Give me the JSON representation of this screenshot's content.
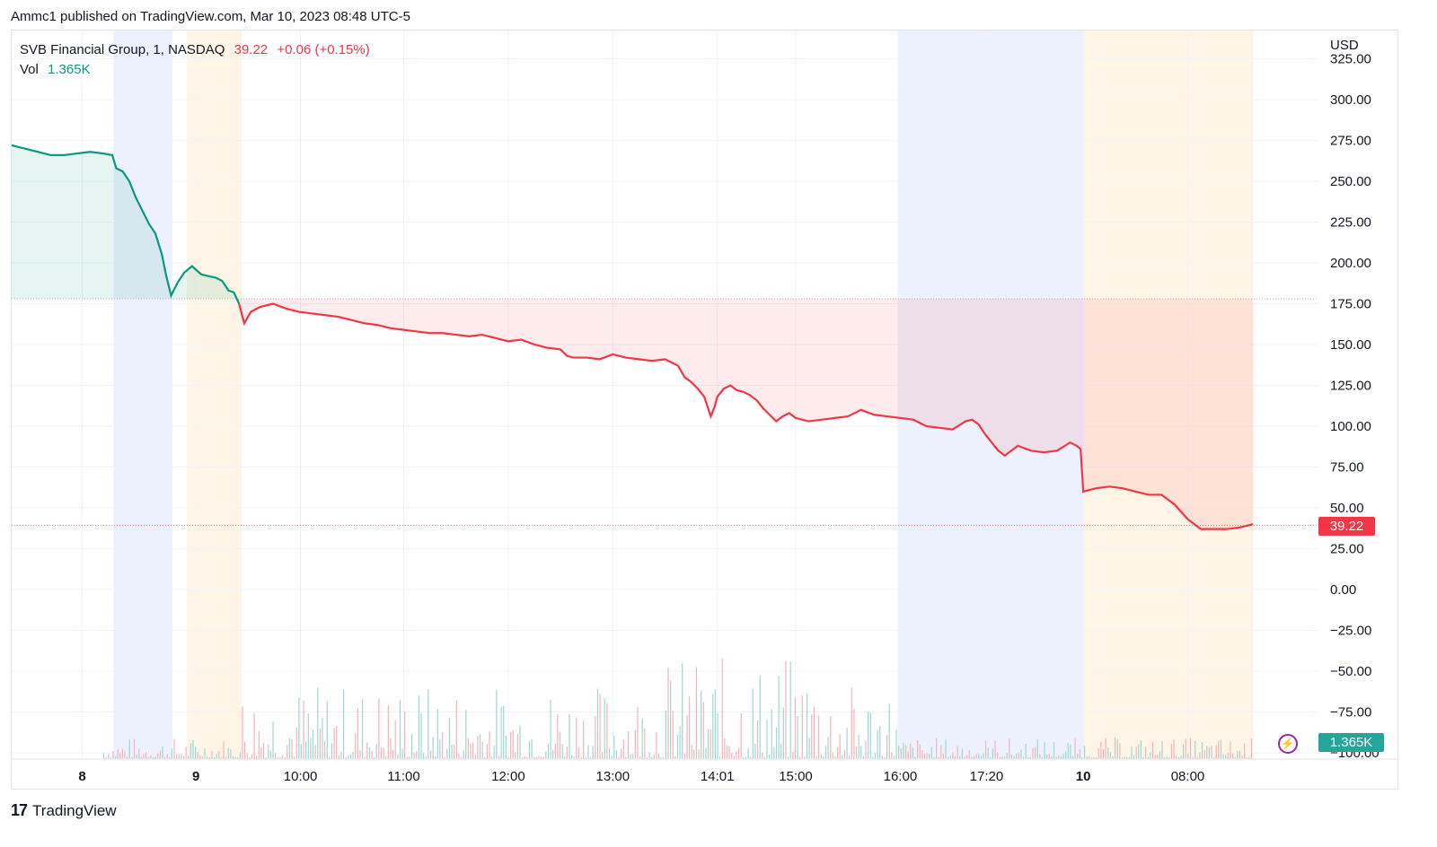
{
  "header": {
    "published": "Ammc1 published on TradingView.com, Mar 10, 2023 08:48 UTC-5"
  },
  "legend": {
    "symbol": "SVB Financial Group, 1, NASDAQ",
    "price": "39.22",
    "change": "+0.06 (+0.15%)",
    "vol_label": "Vol",
    "vol_value": "1.365K"
  },
  "price_tag": "39.22",
  "volume_tag": "1.365K",
  "footer": {
    "brand": "TradingView",
    "logo": "17"
  },
  "colors": {
    "up": "#089981",
    "down": "#f23645",
    "premarket": "#fff3e0",
    "afterhours": "#e8edfd",
    "grid": "#f0f3fa"
  },
  "chart_data": {
    "type": "line",
    "currency": "USD",
    "y_ticks": [
      "325.00",
      "300.00",
      "275.00",
      "250.00",
      "225.00",
      "200.00",
      "175.00",
      "150.00",
      "125.00",
      "100.00",
      "75.00",
      "50.00",
      "25.00",
      "0.00",
      "−25.00",
      "−50.00",
      "−75.00",
      "−100.00"
    ],
    "ylim": [
      -100,
      325
    ],
    "x_ticks": [
      {
        "label": "8",
        "bold": true,
        "t": 0.054
      },
      {
        "label": "9",
        "bold": true,
        "t": 0.141
      },
      {
        "label": "10:00",
        "bold": false,
        "t": 0.221
      },
      {
        "label": "11:00",
        "bold": false,
        "t": 0.3
      },
      {
        "label": "12:00",
        "bold": false,
        "t": 0.38
      },
      {
        "label": "13:00",
        "bold": false,
        "t": 0.46
      },
      {
        "label": "14:01",
        "bold": false,
        "t": 0.54
      },
      {
        "label": "15:00",
        "bold": false,
        "t": 0.6
      },
      {
        "label": "16:00",
        "bold": false,
        "t": 0.68
      },
      {
        "label": "17:20",
        "bold": false,
        "t": 0.746
      },
      {
        "label": "10",
        "bold": true,
        "t": 0.82
      },
      {
        "label": "08:00",
        "bold": false,
        "t": 0.9
      }
    ],
    "sessions": [
      {
        "type": "afterhours",
        "t0": 0.078,
        "t1": 0.123
      },
      {
        "type": "premarket",
        "t0": 0.134,
        "t1": 0.176
      },
      {
        "type": "afterhours",
        "t0": 0.678,
        "t1": 0.821
      },
      {
        "type": "premarket",
        "t0": 0.821,
        "t1": 0.95
      }
    ],
    "reference_price": 178,
    "last_price": 39.22,
    "series": [
      {
        "points": [
          [
            0.0,
            272
          ],
          [
            0.01,
            270
          ],
          [
            0.02,
            268
          ],
          [
            0.03,
            266
          ],
          [
            0.04,
            266
          ],
          [
            0.05,
            267
          ],
          [
            0.06,
            268
          ],
          [
            0.07,
            267
          ],
          [
            0.077,
            266
          ],
          [
            0.08,
            258
          ],
          [
            0.085,
            256
          ],
          [
            0.09,
            250
          ],
          [
            0.095,
            240
          ],
          [
            0.1,
            232
          ],
          [
            0.105,
            224
          ],
          [
            0.11,
            218
          ],
          [
            0.115,
            205
          ],
          [
            0.118,
            193
          ],
          [
            0.122,
            180
          ],
          [
            0.127,
            188
          ],
          [
            0.132,
            194
          ],
          [
            0.138,
            198
          ],
          [
            0.145,
            193
          ],
          [
            0.15,
            192
          ],
          [
            0.156,
            191
          ],
          [
            0.161,
            189
          ],
          [
            0.166,
            183
          ],
          [
            0.17,
            182
          ],
          [
            0.174,
            175
          ],
          [
            0.178,
            163
          ],
          [
            0.183,
            170
          ],
          [
            0.19,
            173
          ],
          [
            0.2,
            175
          ],
          [
            0.21,
            172
          ],
          [
            0.22,
            170
          ],
          [
            0.23,
            169
          ],
          [
            0.24,
            168
          ],
          [
            0.25,
            167
          ],
          [
            0.26,
            165
          ],
          [
            0.27,
            163
          ],
          [
            0.28,
            162
          ],
          [
            0.29,
            160
          ],
          [
            0.3,
            159
          ],
          [
            0.31,
            158
          ],
          [
            0.32,
            157
          ],
          [
            0.33,
            157
          ],
          [
            0.34,
            156
          ],
          [
            0.35,
            155
          ],
          [
            0.36,
            156
          ],
          [
            0.37,
            154
          ],
          [
            0.38,
            152
          ],
          [
            0.39,
            153
          ],
          [
            0.4,
            150
          ],
          [
            0.41,
            148
          ],
          [
            0.42,
            147
          ],
          [
            0.425,
            143
          ],
          [
            0.43,
            142
          ],
          [
            0.44,
            142
          ],
          [
            0.45,
            141
          ],
          [
            0.46,
            144
          ],
          [
            0.47,
            142
          ],
          [
            0.48,
            141
          ],
          [
            0.49,
            140
          ],
          [
            0.5,
            141
          ],
          [
            0.505,
            139
          ],
          [
            0.51,
            137
          ],
          [
            0.515,
            130
          ],
          [
            0.52,
            127
          ],
          [
            0.525,
            123
          ],
          [
            0.53,
            118
          ],
          [
            0.535,
            106
          ],
          [
            0.538,
            112
          ],
          [
            0.54,
            118
          ],
          [
            0.545,
            123
          ],
          [
            0.55,
            125
          ],
          [
            0.555,
            122
          ],
          [
            0.56,
            121
          ],
          [
            0.565,
            119
          ],
          [
            0.57,
            116
          ],
          [
            0.575,
            111
          ],
          [
            0.58,
            107
          ],
          [
            0.585,
            103
          ],
          [
            0.59,
            106
          ],
          [
            0.595,
            108
          ],
          [
            0.6,
            105
          ],
          [
            0.61,
            103
          ],
          [
            0.62,
            104
          ],
          [
            0.63,
            105
          ],
          [
            0.64,
            106
          ],
          [
            0.65,
            110
          ],
          [
            0.66,
            107
          ],
          [
            0.67,
            106
          ],
          [
            0.68,
            105
          ],
          [
            0.69,
            104
          ],
          [
            0.7,
            100
          ],
          [
            0.71,
            99
          ],
          [
            0.72,
            98
          ],
          [
            0.73,
            103
          ],
          [
            0.735,
            104
          ],
          [
            0.74,
            101
          ],
          [
            0.745,
            95
          ],
          [
            0.75,
            90
          ],
          [
            0.755,
            85
          ],
          [
            0.76,
            82
          ],
          [
            0.765,
            85
          ],
          [
            0.77,
            88
          ],
          [
            0.78,
            85
          ],
          [
            0.79,
            84
          ],
          [
            0.8,
            85
          ],
          [
            0.81,
            90
          ],
          [
            0.815,
            88
          ],
          [
            0.818,
            86
          ],
          [
            0.82,
            60
          ],
          [
            0.83,
            62
          ],
          [
            0.84,
            63
          ],
          [
            0.85,
            62
          ],
          [
            0.86,
            60
          ],
          [
            0.87,
            58
          ],
          [
            0.88,
            58
          ],
          [
            0.89,
            52
          ],
          [
            0.9,
            43
          ],
          [
            0.91,
            37
          ],
          [
            0.92,
            37
          ],
          [
            0.93,
            37
          ],
          [
            0.94,
            38
          ],
          [
            0.95,
            40
          ]
        ]
      }
    ]
  }
}
